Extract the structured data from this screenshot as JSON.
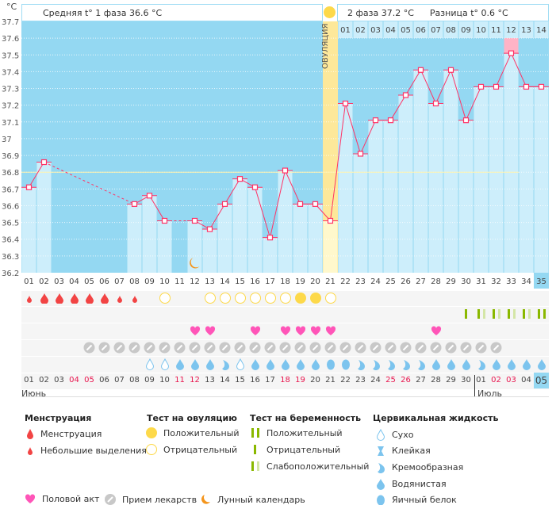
{
  "header": {
    "unit": "°C",
    "phase1": "Средняя t° 1 фаза 36.6 °C",
    "phase2": "2 фаза 37.2 °C",
    "diff": "Разница t° 0.6 °C",
    "ovulation_label": "ОВУЛЯЦИЯ"
  },
  "colors": {
    "bg": "#94d8f2",
    "bar": "#cdeefb",
    "line": "#ff3366",
    "ovulation": "#fde89a",
    "cover": "#fff3b0",
    "highlight": "#ffb3c6"
  },
  "chart_data": {
    "type": "line",
    "ylim": [
      36.2,
      37.7
    ],
    "yticks": [
      "37.7",
      "37.6",
      "37.5",
      "37.4",
      "37.3",
      "37.2",
      "37.1",
      "37",
      "36.9",
      "36.8",
      "36.7",
      "36.6",
      "36.5",
      "36.4",
      "36.3",
      "36.2"
    ],
    "cycle_days": [
      "01",
      "02",
      "03",
      "04",
      "05",
      "06",
      "07",
      "08",
      "09",
      "10",
      "11",
      "12",
      "13",
      "14",
      "15",
      "16",
      "17",
      "18",
      "19",
      "20",
      "21",
      "22",
      "23",
      "24",
      "25",
      "26",
      "27",
      "28",
      "29",
      "30",
      "31",
      "32",
      "33",
      "34",
      "35"
    ],
    "temperatures": [
      36.71,
      36.86,
      null,
      null,
      null,
      null,
      null,
      36.61,
      36.66,
      36.51,
      null,
      36.51,
      36.46,
      36.61,
      36.76,
      36.71,
      36.41,
      36.81,
      36.61,
      36.61,
      36.51,
      37.21,
      36.91,
      37.11,
      37.11,
      37.26,
      37.41,
      37.21,
      37.41,
      37.11,
      37.31,
      37.31,
      37.51,
      37.31,
      37.31
    ],
    "coverline": 36.8,
    "ovulation_day": 21,
    "phase2_days": [
      "01",
      "02",
      "03",
      "04",
      "05",
      "06",
      "07",
      "08",
      "09",
      "10",
      "11",
      "12",
      "13",
      "14"
    ],
    "phase2_highlight_day": "12"
  },
  "rows": {
    "menstruation": [
      "s",
      "b",
      "b",
      "b",
      "b",
      "b",
      "s",
      "s",
      null,
      null,
      null,
      null,
      null,
      null,
      null,
      null,
      null,
      null,
      null,
      null,
      null,
      null,
      null,
      null,
      null,
      null,
      null,
      null,
      null,
      null,
      null,
      null,
      null,
      null,
      null
    ],
    "ovulation_test": [
      null,
      null,
      null,
      null,
      null,
      null,
      null,
      null,
      null,
      "neg",
      null,
      null,
      "neg",
      "neg",
      "neg",
      "neg",
      "neg",
      "neg",
      "pos",
      "pos",
      "neg",
      null,
      null,
      null,
      null,
      null,
      null,
      null,
      null,
      null,
      null,
      null,
      null,
      null,
      null
    ],
    "pregnancy_test": [
      null,
      null,
      null,
      null,
      null,
      null,
      null,
      null,
      null,
      null,
      null,
      null,
      null,
      null,
      null,
      null,
      null,
      null,
      null,
      null,
      null,
      null,
      null,
      null,
      null,
      null,
      null,
      null,
      null,
      "neg",
      "weak",
      "weak",
      "weak",
      "weak",
      "pos"
    ],
    "intercourse_days": [
      12,
      13,
      16,
      18,
      19,
      20,
      21,
      28
    ],
    "medication_days": [
      5,
      6,
      7,
      8,
      9,
      10,
      11,
      12,
      13,
      14,
      15,
      16,
      17,
      18,
      19,
      20,
      21,
      22,
      23,
      24,
      25,
      26,
      27,
      28,
      29,
      30,
      31,
      32
    ],
    "cervical": [
      null,
      null,
      null,
      null,
      null,
      null,
      null,
      null,
      "dry",
      "dry",
      "water",
      "water",
      "water",
      "cream",
      "dry",
      "water",
      "water",
      "water",
      "water",
      "water",
      "egg",
      "egg",
      "cream",
      "cream",
      "cream",
      "cream",
      "cream",
      "water",
      "water",
      "water",
      "cream",
      "water",
      "water",
      "water",
      "water"
    ],
    "moon_day": 12
  },
  "dates": [
    "01",
    "02",
    "03",
    "04",
    "05",
    "06",
    "07",
    "08",
    "09",
    "10",
    "11",
    "12",
    "13",
    "14",
    "15",
    "16",
    "17",
    "18",
    "19",
    "20",
    "21",
    "22",
    "23",
    "24",
    "25",
    "26",
    "27",
    "28",
    "29",
    "30",
    "01",
    "02",
    "03",
    "04",
    "05"
  ],
  "red_dates": [
    4,
    5,
    11,
    12,
    18,
    19,
    25,
    26,
    32,
    33
  ],
  "months": {
    "june": "Июнь",
    "july": "Июль"
  },
  "legend": {
    "menstruation": {
      "title": "Менструация",
      "items": [
        "Менструация",
        "Небольшие выделения"
      ]
    },
    "ovulation_test": {
      "title": "Тест на овуляцию",
      "items": [
        "Положительный",
        "Отрицательный"
      ]
    },
    "pregnancy_test": {
      "title": "Тест на беременность",
      "items": [
        "Положительный",
        "Отрицательный",
        "Слабоположительный"
      ]
    },
    "cervical": {
      "title": "Цервикальная жидкость",
      "items": [
        "Сухо",
        "Клейкая",
        "Кремообразная",
        "Водянистая",
        "Яичный белок"
      ]
    },
    "other": [
      "Половой акт",
      "Прием лекарств",
      "Лунный календарь"
    ]
  }
}
